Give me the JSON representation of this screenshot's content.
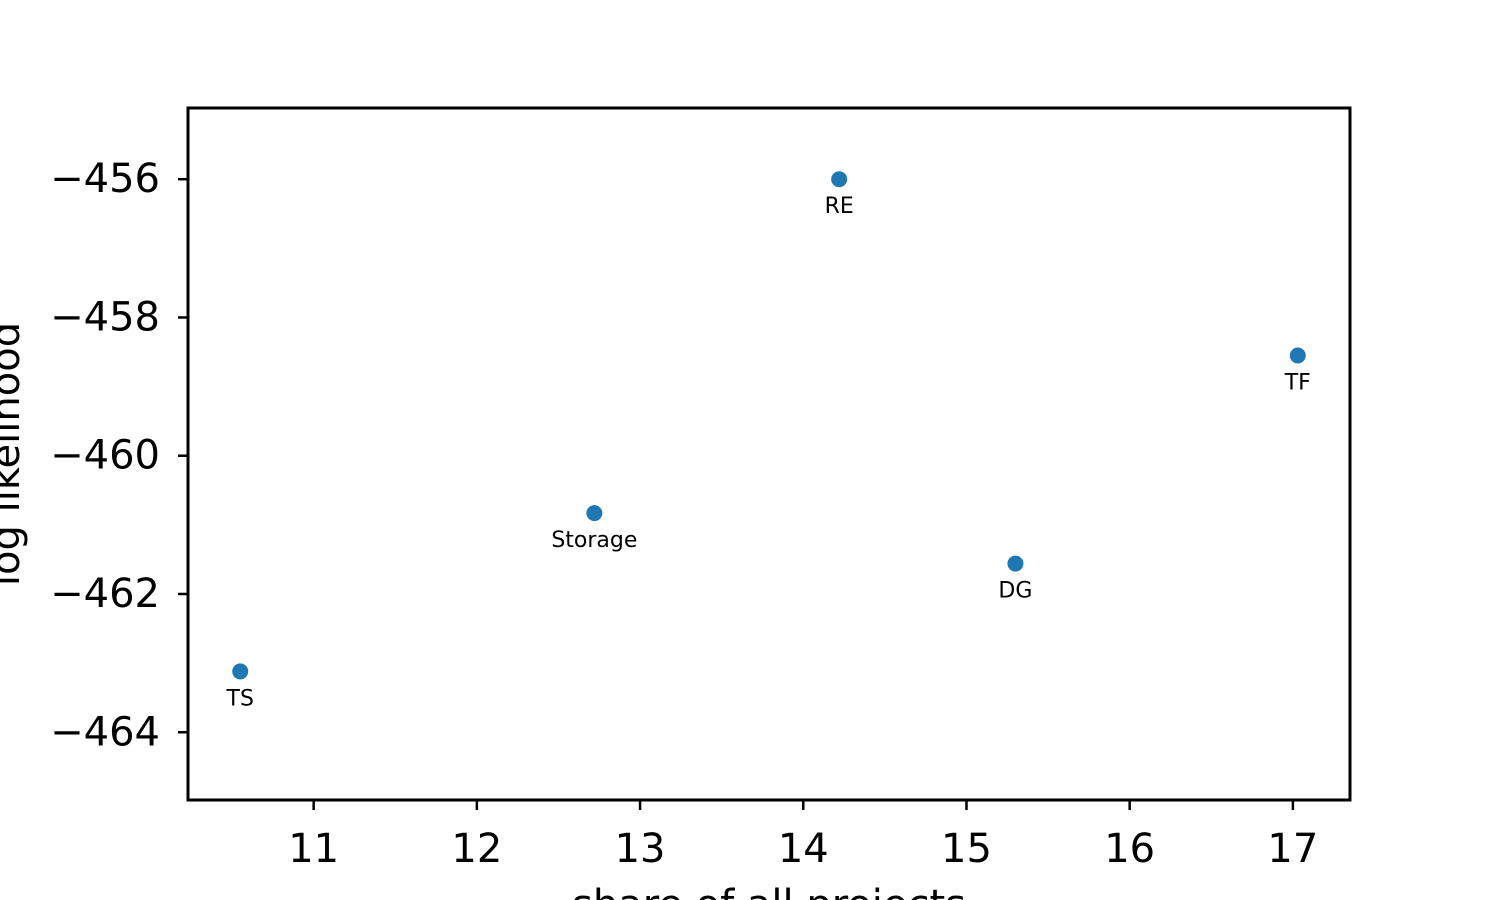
{
  "chart_data": {
    "type": "scatter",
    "title": "",
    "xlabel": "share of all projects",
    "ylabel": "log likelihood",
    "xlim": [
      10.23,
      17.35
    ],
    "ylim": [
      -464.98,
      -454.97
    ],
    "xticks": [
      11,
      12,
      13,
      14,
      15,
      16,
      17
    ],
    "yticks": [
      -456,
      -458,
      -460,
      -462,
      -464
    ],
    "xtick_labels": [
      "11",
      "12",
      "13",
      "14",
      "15",
      "16",
      "17"
    ],
    "ytick_labels": [
      "−456",
      "−458",
      "−460",
      "−462",
      "−464"
    ],
    "grid": false,
    "legend": null,
    "colors": {
      "points": "#1f77b4",
      "axes": "#000000"
    },
    "points": [
      {
        "label": "TS",
        "x": 10.55,
        "y": -463.12
      },
      {
        "label": "Storage",
        "x": 12.72,
        "y": -460.83
      },
      {
        "label": "RE",
        "x": 14.22,
        "y": -456.0
      },
      {
        "label": "DG",
        "x": 15.3,
        "y": -461.56
      },
      {
        "label": "TF",
        "x": 17.03,
        "y": -458.55
      }
    ]
  }
}
